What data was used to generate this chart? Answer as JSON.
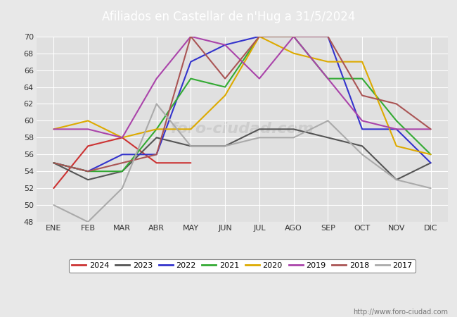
{
  "title": "Afiliados en Castellar de n'Hug a 31/5/2024",
  "ylim": [
    48,
    70
  ],
  "yticks": [
    48,
    50,
    52,
    54,
    56,
    58,
    60,
    62,
    64,
    66,
    68,
    70
  ],
  "months": [
    "ENE",
    "FEB",
    "MAR",
    "ABR",
    "MAY",
    "JUN",
    "JUL",
    "AGO",
    "SEP",
    "OCT",
    "NOV",
    "DIC"
  ],
  "series": [
    {
      "label": "2024",
      "color": "#cc3333",
      "data": [
        52,
        57,
        58,
        55,
        55,
        null,
        null,
        null,
        null,
        null,
        null,
        null
      ]
    },
    {
      "label": "2023",
      "color": "#555555",
      "data": [
        55,
        53,
        54,
        58,
        57,
        57,
        59,
        59,
        58,
        57,
        53,
        55
      ]
    },
    {
      "label": "2022",
      "color": "#3333cc",
      "data": [
        55,
        54,
        56,
        56,
        67,
        69,
        70,
        70,
        70,
        59,
        59,
        55
      ]
    },
    {
      "label": "2021",
      "color": "#33aa33",
      "data": [
        55,
        54,
        54,
        59,
        65,
        64,
        70,
        70,
        65,
        65,
        60,
        56
      ]
    },
    {
      "label": "2020",
      "color": "#ddaa00",
      "data": [
        59,
        60,
        58,
        59,
        59,
        63,
        70,
        68,
        67,
        67,
        57,
        56
      ]
    },
    {
      "label": "2019",
      "color": "#aa44aa",
      "data": [
        59,
        59,
        58,
        65,
        70,
        69,
        65,
        70,
        65,
        60,
        59,
        59
      ]
    },
    {
      "label": "2018",
      "color": "#aa5555",
      "data": [
        55,
        54,
        55,
        56,
        70,
        65,
        70,
        70,
        70,
        63,
        62,
        59
      ]
    },
    {
      "label": "2017",
      "color": "#aaaaaa",
      "data": [
        50,
        48,
        52,
        62,
        57,
        57,
        58,
        58,
        60,
        56,
        53,
        52
      ]
    }
  ],
  "footer_text": "http://www.foro-ciudad.com",
  "title_bg": "#5577bb",
  "title_fg": "#ffffff",
  "plot_bg": "#e0e0e0",
  "fig_bg": "#e8e8e8",
  "grid_color": "#ffffff",
  "tick_color": "#333333",
  "tick_fontsize": 8,
  "title_fontsize": 12,
  "line_width": 1.5,
  "legend_fontsize": 8,
  "footer_fontsize": 7,
  "footer_color": "#777777"
}
